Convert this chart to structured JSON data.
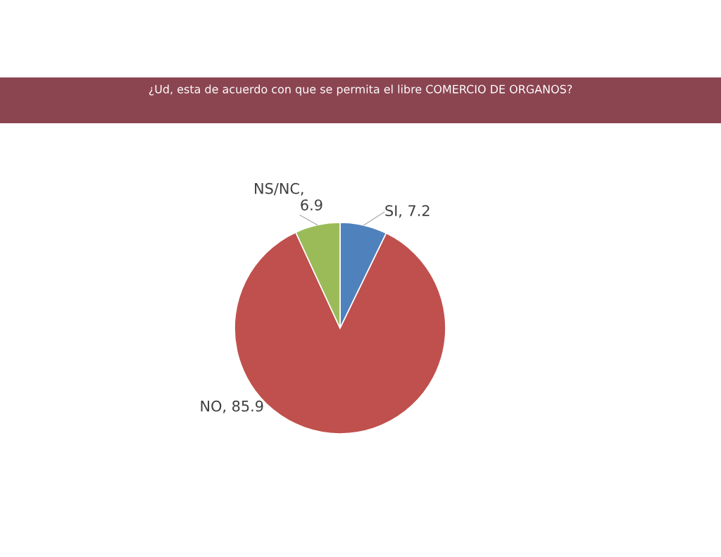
{
  "chart_data": {
    "type": "pie",
    "title": "¿Ud, esta de acuerdo con que se permita el libre COMERCIO DE ORGANOS?",
    "categories": [
      "SI",
      "NO",
      "NS/NC"
    ],
    "values": [
      7.2,
      85.9,
      6.9
    ],
    "colors": [
      "#4f81bd",
      "#c0504d",
      "#9bbb59"
    ],
    "value_labels": [
      ", 7.2",
      ", 85.9",
      ", 6.9"
    ]
  }
}
